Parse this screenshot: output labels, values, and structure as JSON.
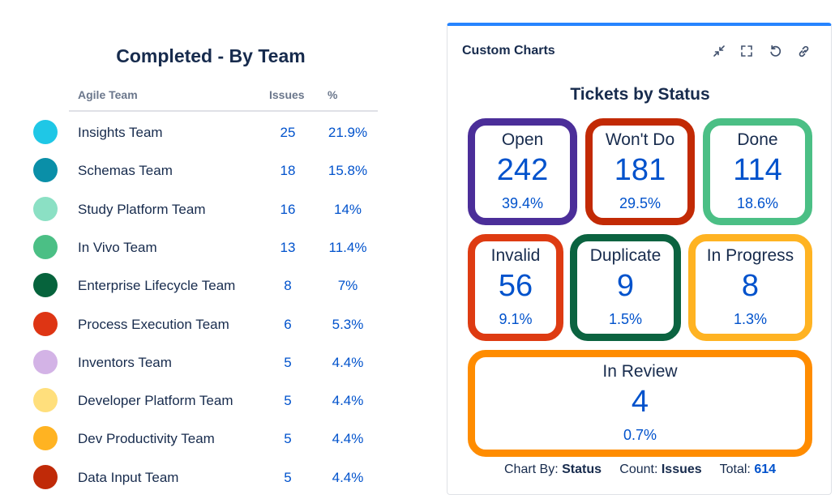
{
  "left": {
    "title": "Completed - By Team",
    "headers": {
      "team": "Agile Team",
      "issues": "Issues",
      "pct": "%"
    },
    "rows": [
      {
        "team": "Insights Team",
        "issues": "25",
        "pct": "21.9%",
        "color": "#1fc7e6"
      },
      {
        "team": "Schemas Team",
        "issues": "18",
        "pct": "15.8%",
        "color": "#0a8fa8"
      },
      {
        "team": "Study Platform Team",
        "issues": "16",
        "pct": "14%",
        "color": "#8be0c4"
      },
      {
        "team": "In Vivo Team",
        "issues": "13",
        "pct": "11.4%",
        "color": "#4bbf85"
      },
      {
        "team": "Enterprise Lifecycle Team",
        "issues": "8",
        "pct": "7%",
        "color": "#06633c"
      },
      {
        "team": "Process Execution Team",
        "issues": "6",
        "pct": "5.3%",
        "color": "#de3514"
      },
      {
        "team": "Inventors Team",
        "issues": "5",
        "pct": "4.4%",
        "color": "#d3b3e6"
      },
      {
        "team": "Developer Platform Team",
        "issues": "5",
        "pct": "4.4%",
        "color": "#ffdf7c"
      },
      {
        "team": "Dev Productivity Team",
        "issues": "5",
        "pct": "4.4%",
        "color": "#ffb322"
      },
      {
        "team": "Data Input Team",
        "issues": "5",
        "pct": "4.4%",
        "color": "#c02a08"
      }
    ]
  },
  "panel": {
    "title": "Custom Charts",
    "tools": [
      "minimize-icon",
      "fullscreen-icon",
      "refresh-icon",
      "link-icon"
    ],
    "chart_title": "Tickets by Status",
    "cards": [
      {
        "label": "Open",
        "count": "242",
        "pct": "39.4%",
        "color": "#4b2e99"
      },
      {
        "label": "Won't Do",
        "count": "181",
        "pct": "29.5%",
        "color": "#c22a05"
      },
      {
        "label": "Done",
        "count": "114",
        "pct": "18.6%",
        "color": "#4bbf85"
      },
      {
        "label": "Invalid",
        "count": "56",
        "pct": "9.1%",
        "color": "#de3b12"
      },
      {
        "label": "Duplicate",
        "count": "9",
        "pct": "1.5%",
        "color": "#0b6340"
      },
      {
        "label": "In Progress",
        "count": "8",
        "pct": "1.3%",
        "color": "#ffb322"
      },
      {
        "label": "In Review",
        "count": "4",
        "pct": "0.7%",
        "color": "#ff8c00"
      }
    ],
    "footer": {
      "chart_by_label": "Chart By:",
      "chart_by_value": "Status",
      "count_label": "Count:",
      "count_value": "Issues",
      "total_label": "Total:",
      "total_value": "614"
    }
  }
}
